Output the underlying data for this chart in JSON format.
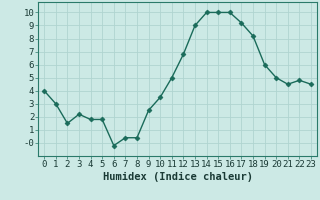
{
  "x": [
    0,
    1,
    2,
    3,
    4,
    5,
    6,
    7,
    8,
    9,
    10,
    11,
    12,
    13,
    14,
    15,
    16,
    17,
    18,
    19,
    20,
    21,
    22,
    23
  ],
  "y": [
    4.0,
    3.0,
    1.5,
    2.2,
    1.8,
    1.8,
    -0.2,
    0.4,
    0.4,
    2.5,
    3.5,
    5.0,
    6.8,
    9.0,
    10.0,
    10.0,
    10.0,
    9.2,
    8.2,
    6.0,
    5.0,
    4.5,
    4.8,
    4.5
  ],
  "line_color": "#1a6b5a",
  "marker": "D",
  "marker_size": 2.5,
  "bg_color": "#cce9e5",
  "grid_color": "#b0d4d0",
  "xlabel": "Humidex (Indice chaleur)",
  "xlim": [
    -0.5,
    23.5
  ],
  "ylim": [
    -1.0,
    10.8
  ],
  "ytick_vals": [
    0,
    1,
    2,
    3,
    4,
    5,
    6,
    7,
    8,
    9,
    10
  ],
  "ytick_labels": [
    "-0",
    "1",
    "2",
    "3",
    "4",
    "5",
    "6",
    "7",
    "8",
    "9",
    "10"
  ],
  "xticks": [
    0,
    1,
    2,
    3,
    4,
    5,
    6,
    7,
    8,
    9,
    10,
    11,
    12,
    13,
    14,
    15,
    16,
    17,
    18,
    19,
    20,
    21,
    22,
    23
  ],
  "xlabel_fontsize": 7.5,
  "tick_fontsize": 6.5
}
